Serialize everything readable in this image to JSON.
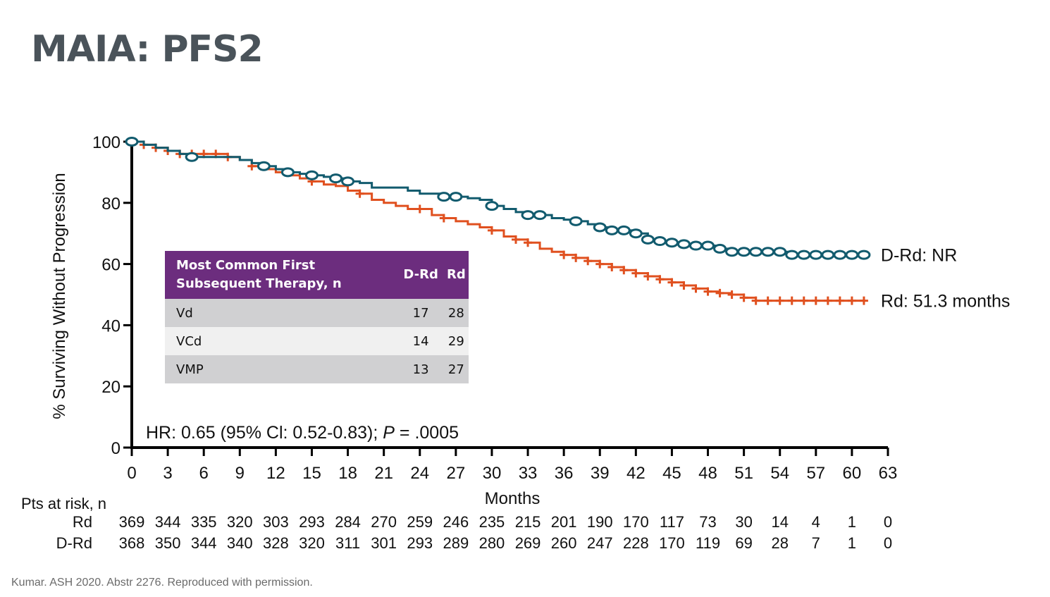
{
  "title": "MAIA: PFS2",
  "citation": "Kumar. ASH 2020. Abstr 2276. Reproduced with permission.",
  "hr_text": {
    "prefix": "HR: 0.65 (95% Cl: 0.52-0.83); ",
    "p_label": "P",
    "suffix": " = .0005"
  },
  "table": {
    "header": [
      "Most Common First\nSubsequent Therapy, n",
      "D-Rd",
      "Rd"
    ],
    "rows": [
      {
        "therapy": "Vd",
        "drd": "17",
        "rd": "28"
      },
      {
        "therapy": "VCd",
        "drd": "14",
        "rd": "29"
      },
      {
        "therapy": "VMP",
        "drd": "13",
        "rd": "27"
      }
    ]
  },
  "colors": {
    "drd": "#125b6e",
    "rd": "#e0501f",
    "table_header": "#6c2d7e"
  },
  "chart_data": {
    "type": "line",
    "title": "",
    "xlabel": "Months",
    "ylabel": "% Surviving Without Progression",
    "xlim": [
      0,
      63
    ],
    "ylim": [
      0,
      100
    ],
    "xticks": [
      0,
      3,
      6,
      9,
      12,
      15,
      18,
      21,
      24,
      27,
      30,
      33,
      36,
      39,
      42,
      45,
      48,
      51,
      54,
      57,
      60,
      63
    ],
    "yticks": [
      0,
      20,
      40,
      60,
      80,
      100
    ],
    "grid": false,
    "series": [
      {
        "name": "D-Rd",
        "end_label": "D-Rd: NR",
        "marker": "circle",
        "x": [
          0,
          1,
          2,
          3,
          4,
          5,
          6,
          7,
          8,
          9,
          10,
          11,
          12,
          13,
          14,
          15,
          16,
          17,
          18,
          19,
          20,
          21,
          22,
          23,
          24,
          25,
          26,
          27,
          28,
          29,
          30,
          31,
          32,
          33,
          34,
          35,
          36,
          37,
          38,
          39,
          40,
          41,
          42,
          43,
          44,
          45,
          46,
          47,
          48,
          49,
          50,
          51,
          52,
          53,
          54,
          55,
          56,
          57,
          58,
          59,
          60,
          61
        ],
        "y": [
          100,
          99,
          98,
          97,
          96,
          95,
          95,
          95,
          95,
          94,
          93,
          92,
          91,
          90,
          89.5,
          89,
          88.5,
          88,
          87,
          86.5,
          85,
          85,
          85,
          84,
          83,
          83,
          82,
          82,
          81.5,
          81,
          79,
          78,
          77,
          76,
          76,
          75,
          74.5,
          74,
          73,
          72,
          71,
          71,
          70,
          68,
          67.5,
          67,
          66.5,
          66,
          66,
          65,
          64,
          64,
          64,
          64,
          64,
          63,
          63,
          63,
          63,
          63,
          63,
          63
        ],
        "censor_x": [
          0,
          5,
          11,
          13,
          15,
          17,
          18,
          26,
          27,
          30,
          33,
          34,
          37,
          39,
          40,
          41,
          42,
          43,
          44,
          45,
          46,
          47,
          48,
          49,
          50,
          51,
          52,
          53,
          54,
          55,
          56,
          57,
          58,
          59,
          60,
          61
        ]
      },
      {
        "name": "Rd",
        "end_label": "Rd: 51.3 months",
        "marker": "plus",
        "x": [
          0,
          1,
          2,
          3,
          4,
          5,
          6,
          7,
          8,
          9,
          10,
          11,
          12,
          13,
          14,
          15,
          16,
          17,
          18,
          19,
          20,
          21,
          22,
          23,
          24,
          25,
          26,
          27,
          28,
          29,
          30,
          31,
          32,
          33,
          34,
          35,
          36,
          37,
          38,
          39,
          40,
          41,
          42,
          43,
          44,
          45,
          46,
          47,
          48,
          49,
          50,
          51,
          52,
          53,
          54,
          55,
          56,
          57,
          58,
          59,
          60,
          61
        ],
        "y": [
          100,
          99,
          98,
          97,
          96,
          96,
          96,
          96,
          95,
          94,
          92,
          91,
          90,
          89,
          88,
          87,
          86,
          85.5,
          84,
          83,
          81,
          80,
          79,
          78,
          78,
          76,
          75,
          74,
          73,
          72,
          71,
          69,
          68,
          67,
          65,
          64,
          63,
          62,
          61,
          60,
          59,
          58,
          57,
          56,
          55,
          54,
          53,
          52,
          51,
          50.5,
          50,
          49,
          48,
          48,
          48,
          48,
          48,
          48,
          48,
          48,
          48,
          48
        ],
        "censor_x": [
          1,
          2,
          3,
          4,
          5,
          6,
          7,
          8,
          10,
          15,
          19,
          24,
          26,
          30,
          32,
          33,
          36,
          37,
          38,
          39,
          40,
          41,
          42,
          43,
          44,
          45,
          46,
          47,
          48,
          49,
          50,
          51,
          52,
          53,
          54,
          55,
          56,
          57,
          58,
          59,
          60,
          61
        ]
      }
    ]
  },
  "risk_table": {
    "title": "Pts at risk, n",
    "times": [
      0,
      3,
      6,
      9,
      12,
      15,
      18,
      21,
      24,
      27,
      30,
      33,
      36,
      39,
      42,
      45,
      48,
      51,
      54,
      57,
      60,
      63
    ],
    "rows": [
      {
        "label": "Rd",
        "values": [
          "369",
          "344",
          "335",
          "320",
          "303",
          "293",
          "284",
          "270",
          "259",
          "246",
          "235",
          "215",
          "201",
          "190",
          "170",
          "117",
          "73",
          "30",
          "14",
          "4",
          "1",
          "0"
        ]
      },
      {
        "label": "D-Rd",
        "values": [
          "368",
          "350",
          "344",
          "340",
          "328",
          "320",
          "311",
          "301",
          "293",
          "289",
          "280",
          "269",
          "260",
          "247",
          "228",
          "170",
          "119",
          "69",
          "28",
          "7",
          "1",
          "0"
        ]
      }
    ]
  }
}
